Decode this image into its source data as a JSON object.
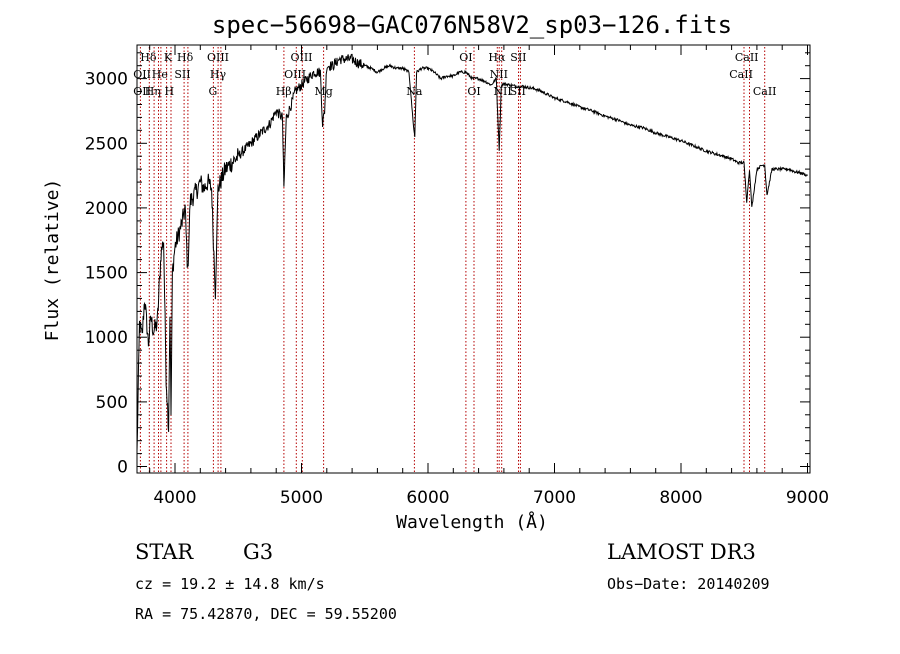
{
  "chart_data": {
    "type": "line",
    "title": "spec−56698−GAC076N58V2_sp03−126.fits",
    "xlabel": "Wavelength (Å)",
    "ylabel": "Flux (relative)",
    "xlim": [
      3700,
      9020
    ],
    "ylim": [
      -50,
      3260
    ],
    "xticks": [
      4000,
      5000,
      6000,
      7000,
      8000,
      9000
    ],
    "yticks": [
      0,
      500,
      1000,
      1500,
      2000,
      2500,
      3000
    ],
    "xtick_labels": [
      "4000",
      "5000",
      "6000",
      "7000",
      "8000",
      "9000"
    ],
    "ytick_labels": [
      "0",
      "500",
      "1000",
      "1500",
      "2000",
      "2500",
      "3000"
    ],
    "series": [
      {
        "name": "spectrum",
        "color": "#000000",
        "x": [
          3700,
          3720,
          3740,
          3760,
          3790,
          3810,
          3830,
          3860,
          3890,
          3910,
          3930,
          3950,
          3960,
          3969,
          3980,
          4000,
          4030,
          4060,
          4080,
          4101,
          4120,
          4150,
          4180,
          4200,
          4230,
          4260,
          4290,
          4300,
          4320,
          4340,
          4360,
          4400,
          4450,
          4500,
          4550,
          4600,
          4650,
          4700,
          4750,
          4800,
          4850,
          4861,
          4880,
          4920,
          4950,
          5000,
          5050,
          5100,
          5150,
          5167,
          5175,
          5183,
          5200,
          5250,
          5300,
          5350,
          5400,
          5450,
          5500,
          5550,
          5600,
          5650,
          5700,
          5750,
          5800,
          5850,
          5889,
          5896,
          5910,
          5950,
          6000,
          6050,
          6100,
          6150,
          6200,
          6250,
          6300,
          6350,
          6400,
          6450,
          6500,
          6540,
          6563,
          6580,
          6600,
          6650,
          6700,
          6750,
          6800,
          6850,
          6900,
          7000,
          7100,
          7200,
          7300,
          7400,
          7500,
          7600,
          7700,
          7800,
          7900,
          8000,
          8100,
          8200,
          8300,
          8400,
          8450,
          8498,
          8520,
          8542,
          8560,
          8600,
          8640,
          8662,
          8680,
          8720,
          8760,
          8800,
          8850,
          8900,
          8950,
          9000
        ],
        "y": [
          100,
          1100,
          1000,
          1300,
          950,
          1150,
          1050,
          1100,
          1650,
          1750,
          700,
          300,
          1200,
          400,
          1500,
          1700,
          1800,
          1900,
          2000,
          1500,
          2050,
          2100,
          2150,
          2200,
          2150,
          2200,
          2150,
          1850,
          1350,
          2150,
          2200,
          2300,
          2350,
          2400,
          2450,
          2500,
          2550,
          2600,
          2650,
          2750,
          2700,
          2150,
          2700,
          2800,
          2900,
          2950,
          3000,
          3050,
          3050,
          2650,
          2700,
          2750,
          3100,
          3100,
          3150,
          3150,
          3150,
          3120,
          3100,
          3080,
          3050,
          3080,
          3100,
          3080,
          3080,
          3050,
          2600,
          2550,
          3050,
          3080,
          3080,
          3050,
          3000,
          3020,
          3020,
          3050,
          3050,
          3000,
          3000,
          2980,
          2950,
          3000,
          2450,
          2950,
          2960,
          2950,
          2940,
          2940,
          2930,
          2920,
          2900,
          2850,
          2820,
          2780,
          2750,
          2710,
          2680,
          2640,
          2620,
          2580,
          2550,
          2520,
          2480,
          2440,
          2410,
          2380,
          2350,
          2350,
          2050,
          2300,
          2000,
          2300,
          2330,
          2330,
          2100,
          2300,
          2300,
          2300,
          2300,
          2280,
          2270,
          2250
        ]
      }
    ],
    "line_markers": {
      "color": "#b40000",
      "wavelengths": [
        3727,
        3797,
        3835,
        3870,
        3889,
        3934,
        3969,
        4072,
        4102,
        4304,
        4341,
        4363,
        4861,
        4959,
        5007,
        5175,
        5893,
        6300,
        6364,
        6548,
        6563,
        6583,
        6716,
        6731,
        8498,
        8542,
        8662
      ],
      "labels": [
        {
          "text": "Hδ",
          "x": 3790,
          "row": 0
        },
        {
          "text": "K",
          "x": 3945,
          "row": 0
        },
        {
          "text": "Hδ",
          "x": 4080,
          "row": 0
        },
        {
          "text": "OIII",
          "x": 4340,
          "row": 0
        },
        {
          "text": "OIII",
          "x": 5000,
          "row": 0
        },
        {
          "text": "OI",
          "x": 6300,
          "row": 0
        },
        {
          "text": "Hα",
          "x": 6545,
          "row": 0
        },
        {
          "text": "SII",
          "x": 6715,
          "row": 0
        },
        {
          "text": "CaII",
          "x": 8520,
          "row": 0
        },
        {
          "text": "OII",
          "x": 3740,
          "row": 1
        },
        {
          "text": "He",
          "x": 3880,
          "row": 1
        },
        {
          "text": "SII",
          "x": 4060,
          "row": 1
        },
        {
          "text": "Hγ",
          "x": 4340,
          "row": 1
        },
        {
          "text": "OIII",
          "x": 4950,
          "row": 1
        },
        {
          "text": "NII",
          "x": 6560,
          "row": 1
        },
        {
          "text": "CaII",
          "x": 8475,
          "row": 1
        },
        {
          "text": "OII",
          "x": 3740,
          "row": 2
        },
        {
          "text": "Hη",
          "x": 3825,
          "row": 2
        },
        {
          "text": "H",
          "x": 3955,
          "row": 2
        },
        {
          "text": "G",
          "x": 4300,
          "row": 2
        },
        {
          "text": "Hβ",
          "x": 4860,
          "row": 2
        },
        {
          "text": "Mg",
          "x": 5175,
          "row": 2
        },
        {
          "text": "Na",
          "x": 5893,
          "row": 2
        },
        {
          "text": "OI",
          "x": 6364,
          "row": 2
        },
        {
          "text": "NII",
          "x": 6590,
          "row": 2
        },
        {
          "text": "SII",
          "x": 6710,
          "row": 2
        },
        {
          "text": "CaII",
          "x": 8662,
          "row": 2
        }
      ]
    }
  },
  "info": {
    "object_class": "STAR",
    "subclass": "G3",
    "survey": "LAMOST DR3",
    "cz": "cz = 19.2 ± 14.8 km/s",
    "obs_date": "Obs−Date: 20140209",
    "coords": "RA =  75.42870, DEC =  59.55200"
  }
}
